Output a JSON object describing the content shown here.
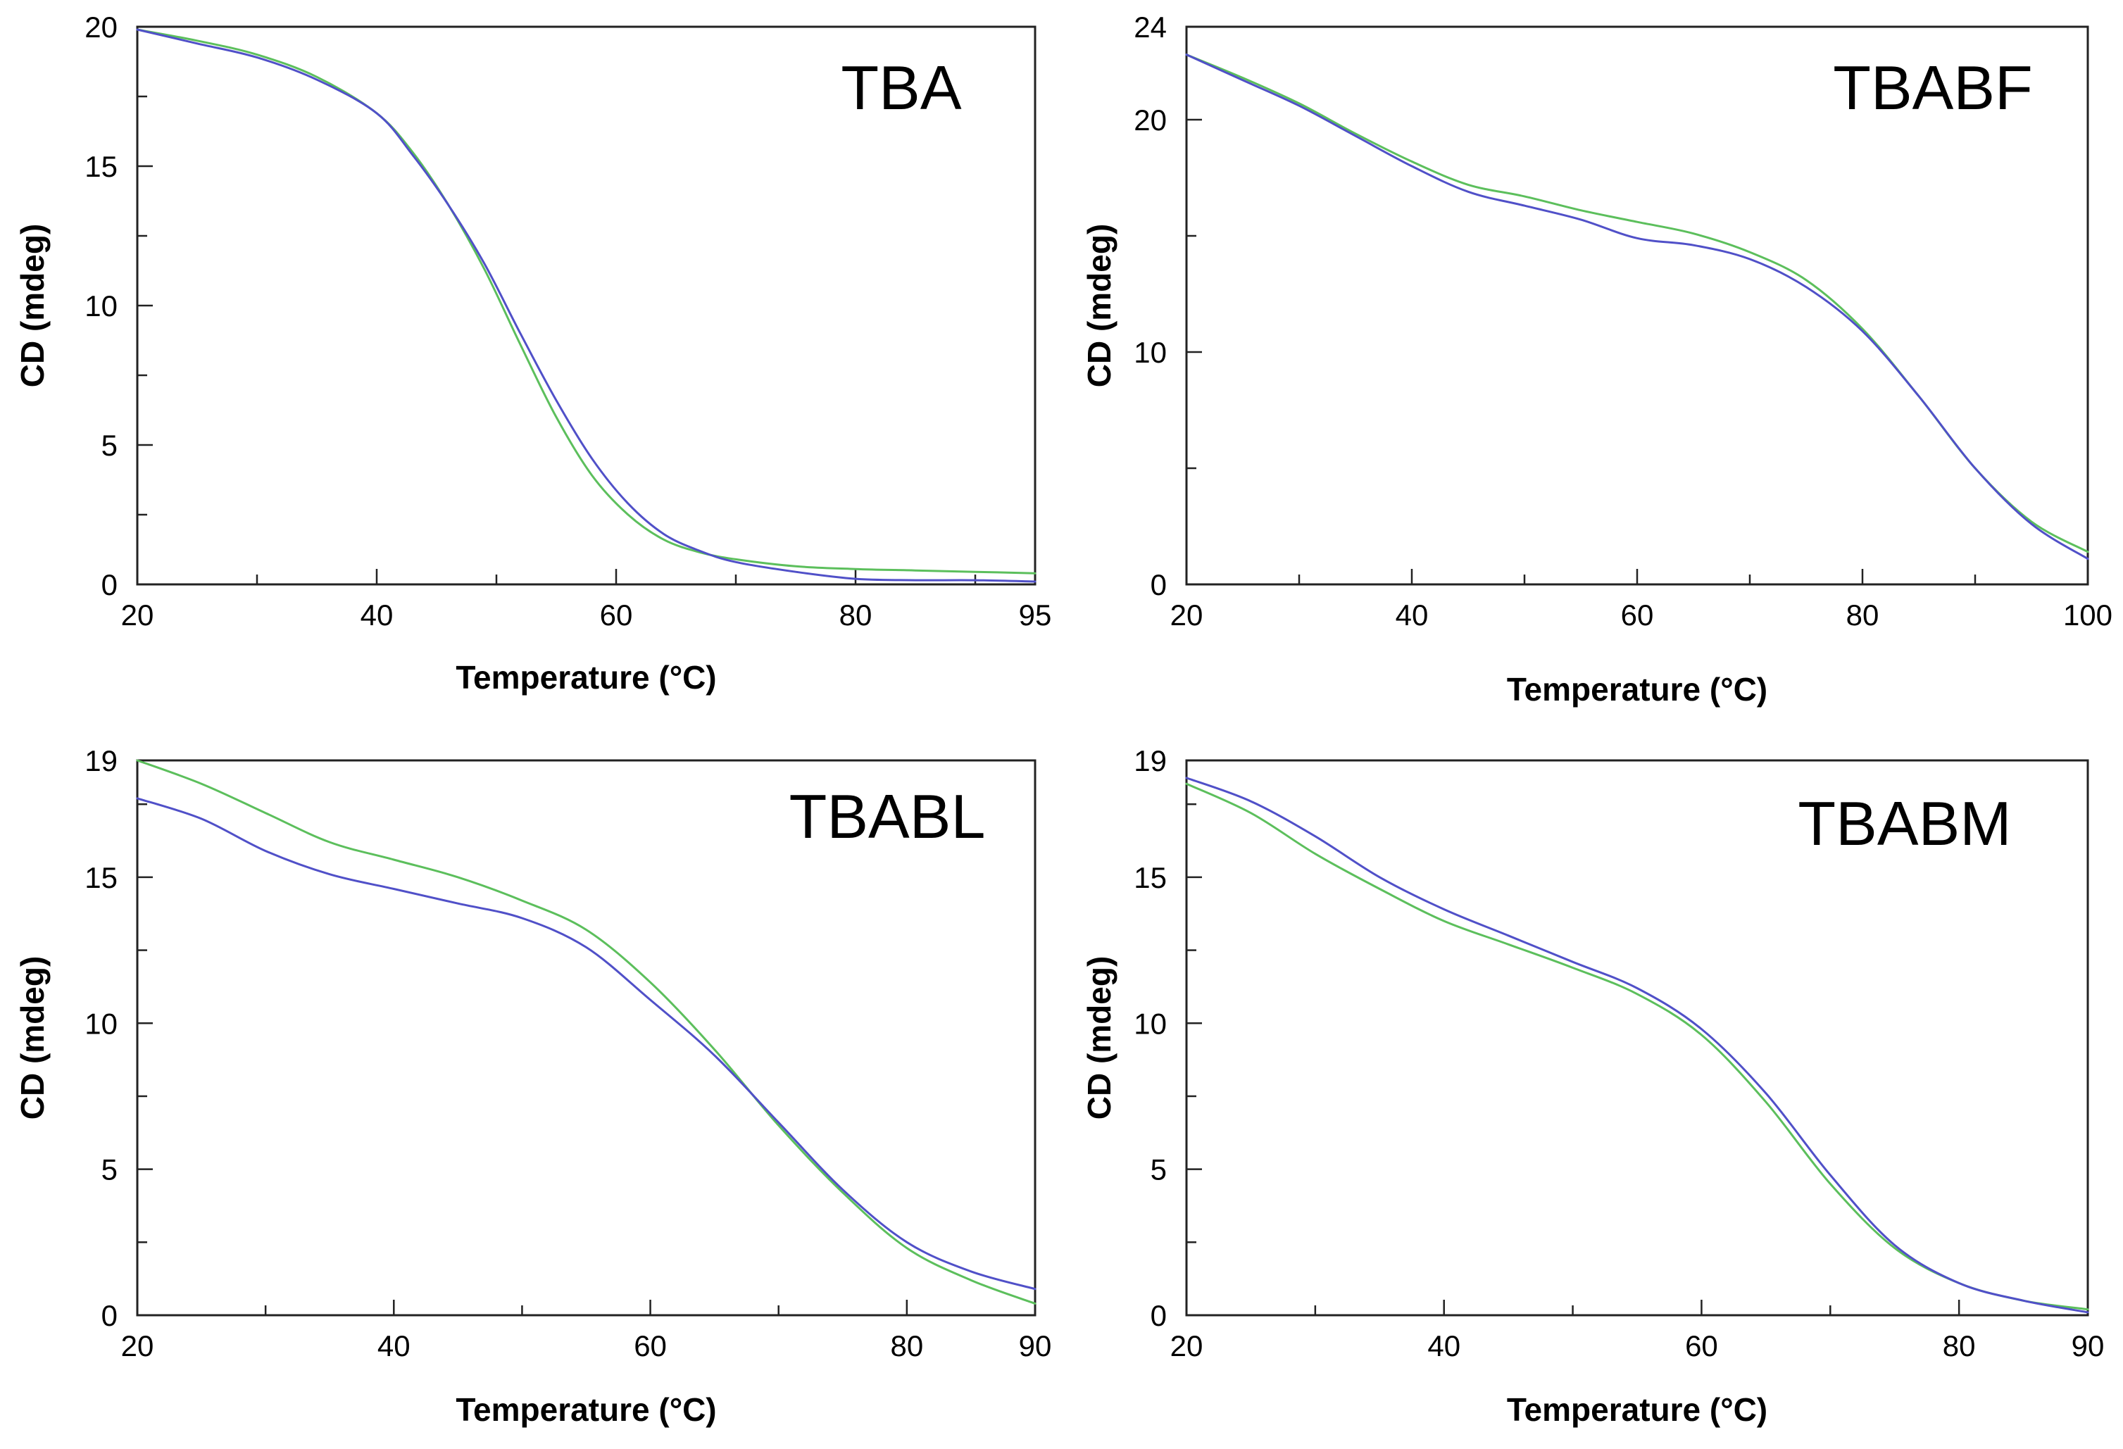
{
  "chart_data": [
    {
      "type": "line",
      "title": "TBA",
      "xlabel": "Temperature (°C)",
      "ylabel": "CD (mdeg)",
      "xlim": [
        20,
        95
      ],
      "ylim": [
        0,
        20
      ],
      "xticks": [
        20,
        40,
        60,
        80,
        95
      ],
      "xticks_minor": [
        30,
        50,
        70,
        90
      ],
      "yticks": [
        0,
        5,
        10,
        15,
        20
      ],
      "yticks_minor": [
        2.5,
        7.5,
        12.5,
        17.5
      ],
      "series": [
        {
          "name": "green",
          "color": "#5cbf5c",
          "x": [
            20,
            25,
            30,
            35,
            40,
            43,
            46,
            49,
            52,
            55,
            58,
            61,
            64,
            67,
            70,
            75,
            80,
            85,
            90,
            95
          ],
          "y": [
            19.9,
            19.5,
            19.0,
            18.2,
            16.9,
            15.5,
            13.6,
            11.3,
            8.6,
            6.0,
            3.9,
            2.5,
            1.6,
            1.15,
            0.9,
            0.65,
            0.55,
            0.5,
            0.45,
            0.4
          ]
        },
        {
          "name": "blue",
          "color": "#5050c8",
          "x": [
            20,
            25,
            30,
            35,
            40,
            43,
            46,
            49,
            52,
            55,
            58,
            61,
            64,
            67,
            70,
            75,
            80,
            85,
            90,
            95
          ],
          "y": [
            19.9,
            19.4,
            18.9,
            18.1,
            16.9,
            15.4,
            13.6,
            11.5,
            9.0,
            6.6,
            4.5,
            2.9,
            1.8,
            1.2,
            0.8,
            0.45,
            0.2,
            0.15,
            0.15,
            0.1
          ]
        }
      ]
    },
    {
      "type": "line",
      "title": "TBABF",
      "xlabel": "Temperature (°C)",
      "ylabel": "CD (mdeg)",
      "xlim": [
        20,
        100
      ],
      "ylim": [
        0,
        24
      ],
      "xticks": [
        20,
        40,
        60,
        80,
        100
      ],
      "xticks_minor": [
        30,
        50,
        70,
        90
      ],
      "yticks": [
        0,
        10,
        20,
        24
      ],
      "yticks_minor": [
        5,
        15
      ],
      "series": [
        {
          "name": "green",
          "color": "#5cbf5c",
          "x": [
            20,
            25,
            30,
            35,
            40,
            45,
            50,
            55,
            60,
            65,
            70,
            75,
            80,
            85,
            90,
            95,
            100
          ],
          "y": [
            22.8,
            21.8,
            20.7,
            19.4,
            18.2,
            17.2,
            16.7,
            16.1,
            15.6,
            15.1,
            14.3,
            13.1,
            11.0,
            8.1,
            5.0,
            2.7,
            1.4
          ]
        },
        {
          "name": "blue",
          "color": "#5050c8",
          "x": [
            20,
            25,
            30,
            35,
            40,
            45,
            50,
            55,
            60,
            65,
            70,
            75,
            80,
            85,
            90,
            95,
            100
          ],
          "y": [
            22.8,
            21.7,
            20.6,
            19.3,
            18.0,
            16.9,
            16.3,
            15.7,
            14.9,
            14.6,
            14.0,
            12.8,
            10.9,
            8.1,
            5.0,
            2.6,
            1.1
          ]
        }
      ]
    },
    {
      "type": "line",
      "title": "TBABL",
      "xlabel": "Temperature (°C)",
      "ylabel": "CD (mdeg)",
      "xlim": [
        20,
        90
      ],
      "ylim": [
        0,
        19
      ],
      "xticks": [
        20,
        40,
        60,
        80,
        90
      ],
      "xticks_minor": [
        30,
        50,
        70
      ],
      "yticks": [
        0,
        5,
        10,
        15,
        19
      ],
      "yticks_minor": [
        2.5,
        7.5,
        12.5,
        17.5
      ],
      "series": [
        {
          "name": "green",
          "color": "#5cbf5c",
          "x": [
            20,
            25,
            30,
            35,
            40,
            45,
            50,
            55,
            60,
            65,
            70,
            75,
            80,
            85,
            90
          ],
          "y": [
            19.0,
            18.2,
            17.2,
            16.2,
            15.6,
            15.0,
            14.2,
            13.2,
            11.4,
            9.1,
            6.5,
            4.2,
            2.3,
            1.2,
            0.4
          ]
        },
        {
          "name": "blue",
          "color": "#5050c8",
          "x": [
            20,
            25,
            30,
            35,
            40,
            45,
            50,
            55,
            60,
            65,
            70,
            75,
            80,
            85,
            90
          ],
          "y": [
            17.7,
            17.0,
            15.9,
            15.1,
            14.6,
            14.1,
            13.6,
            12.6,
            10.8,
            8.9,
            6.6,
            4.3,
            2.5,
            1.5,
            0.9
          ]
        }
      ]
    },
    {
      "type": "line",
      "title": "TBABM",
      "xlabel": "Temperature (°C)",
      "ylabel": "CD (mdeg)",
      "xlim": [
        20,
        90
      ],
      "ylim": [
        0,
        19
      ],
      "xticks": [
        20,
        40,
        60,
        80,
        90
      ],
      "xticks_minor": [
        30,
        50,
        70
      ],
      "yticks": [
        0,
        5,
        10,
        15,
        19
      ],
      "yticks_minor": [
        2.5,
        7.5,
        12.5,
        17.5
      ],
      "series": [
        {
          "name": "green",
          "color": "#5cbf5c",
          "x": [
            20,
            25,
            30,
            35,
            40,
            45,
            50,
            55,
            60,
            65,
            70,
            75,
            80,
            85,
            90
          ],
          "y": [
            18.2,
            17.2,
            15.8,
            14.6,
            13.5,
            12.7,
            11.9,
            11.0,
            9.6,
            7.3,
            4.5,
            2.3,
            1.1,
            0.5,
            0.2
          ]
        },
        {
          "name": "blue",
          "color": "#5050c8",
          "x": [
            20,
            25,
            30,
            35,
            40,
            45,
            50,
            55,
            60,
            65,
            70,
            75,
            80,
            85,
            90
          ],
          "y": [
            18.4,
            17.6,
            16.4,
            15.0,
            13.9,
            13.0,
            12.1,
            11.2,
            9.8,
            7.6,
            4.8,
            2.4,
            1.1,
            0.5,
            0.1
          ]
        }
      ]
    }
  ]
}
